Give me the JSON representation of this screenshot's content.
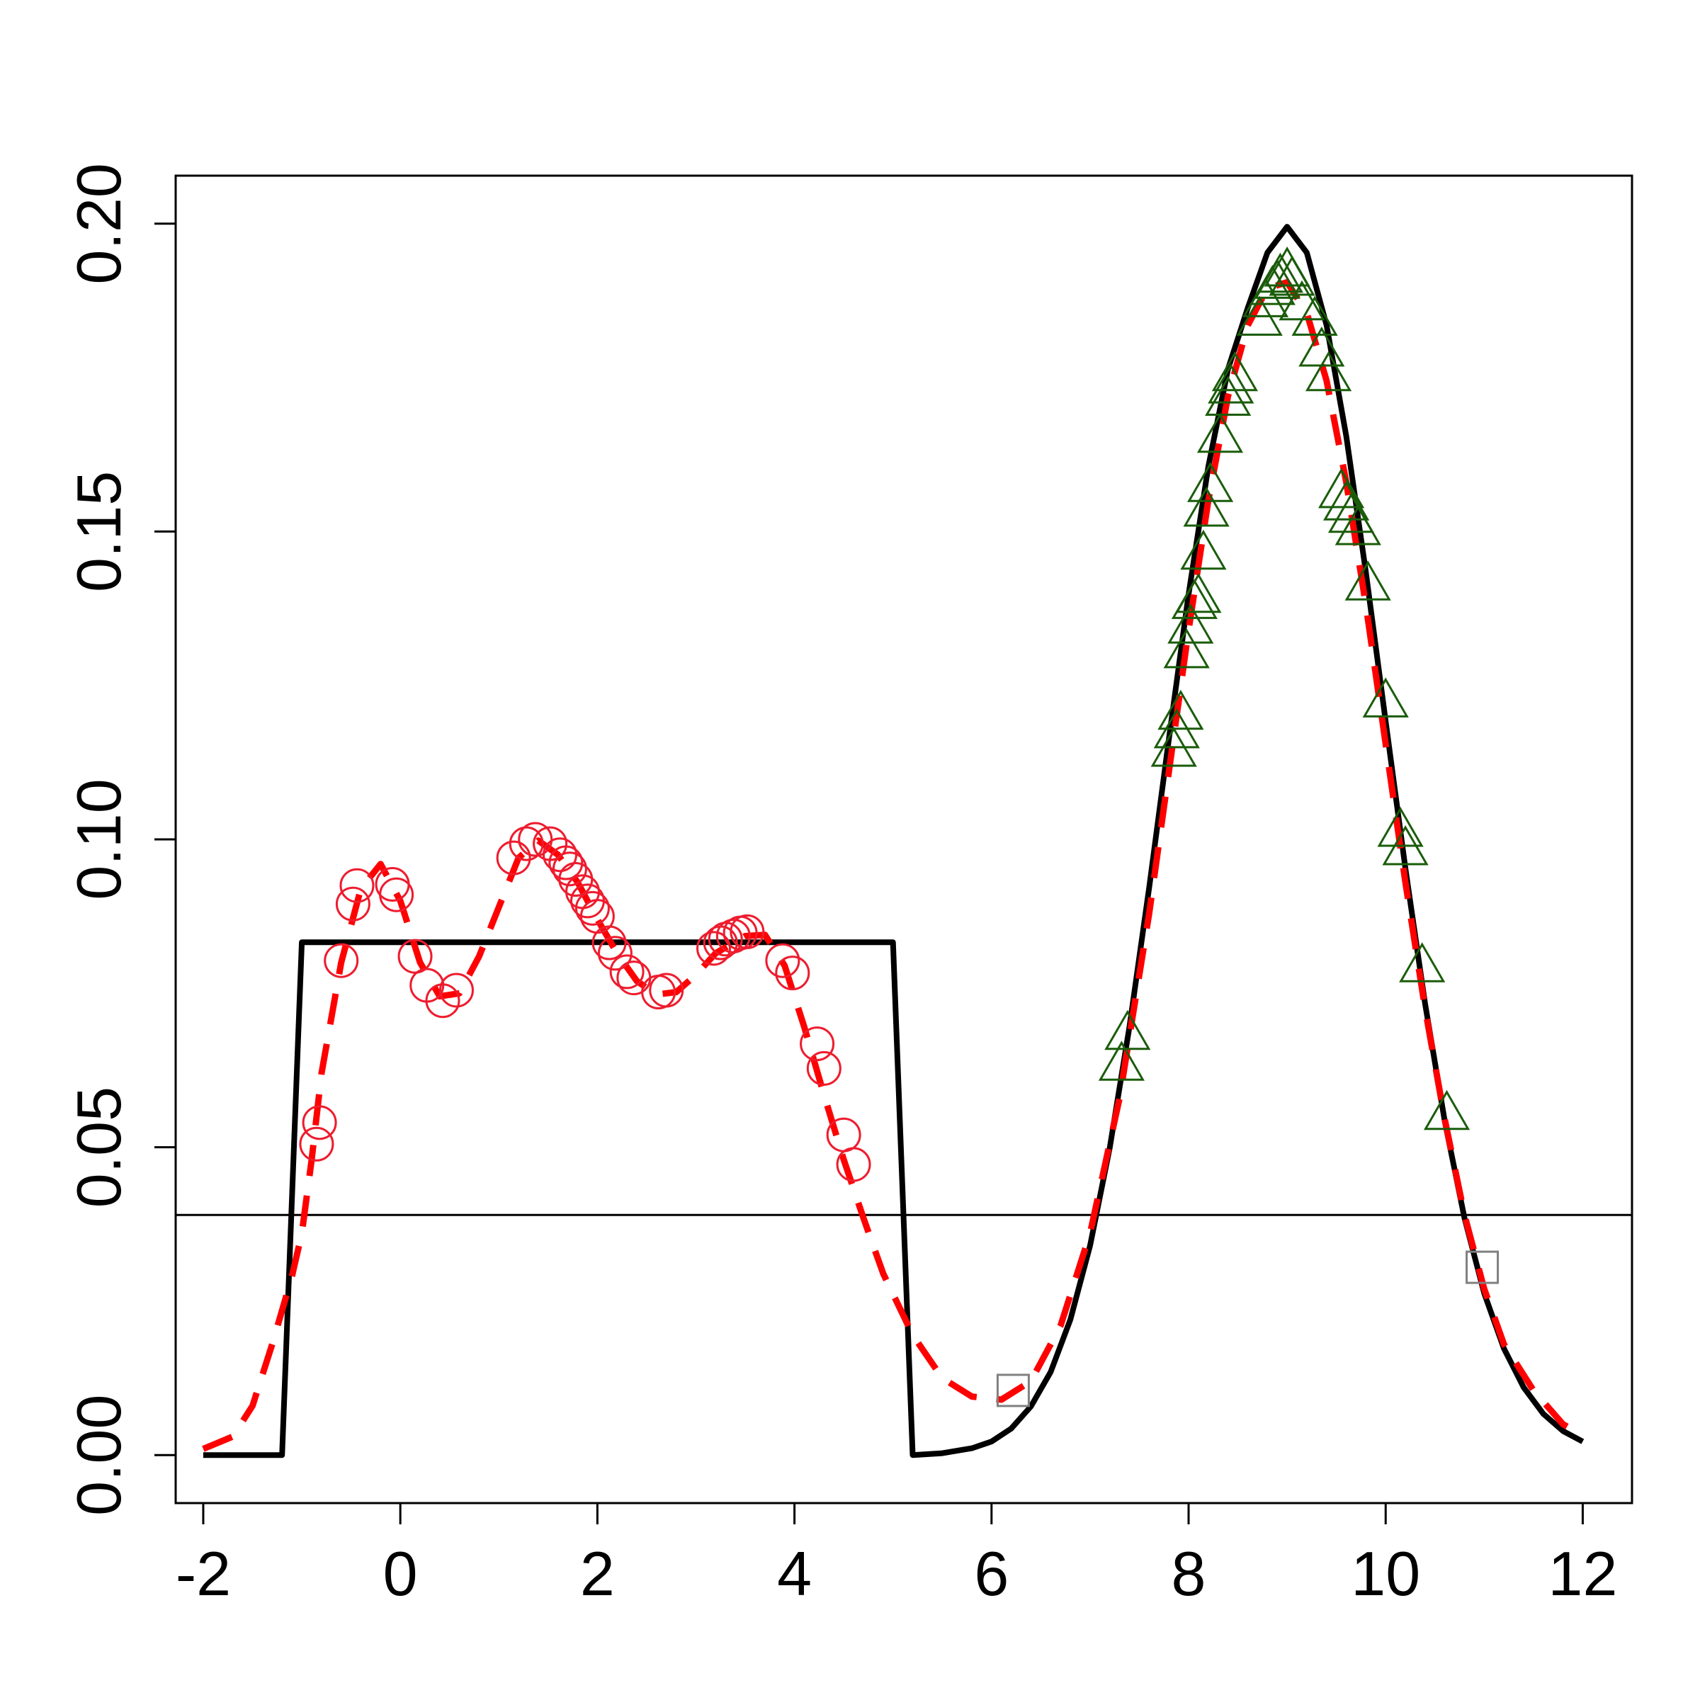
{
  "chart_data": {
    "type": "line",
    "title": "",
    "xlabel": "",
    "ylabel": "",
    "xlim": [
      -2.28,
      12.5
    ],
    "ylim": [
      -0.0078,
      0.2078
    ],
    "x_ticks": [
      -2,
      0,
      2,
      4,
      6,
      8,
      10,
      12
    ],
    "x_tick_labels": [
      "-2",
      "0",
      "2",
      "4",
      "6",
      "8",
      "10",
      "12"
    ],
    "y_ticks": [
      0.0,
      0.05,
      0.1,
      0.15,
      0.2
    ],
    "y_tick_labels": [
      "0.00",
      "0.05",
      "0.10",
      "0.15",
      "0.20"
    ],
    "grid": false,
    "legend": "none",
    "reference_line": {
      "y": 0.039,
      "color": "#000000"
    },
    "series": [
      {
        "style": "solid",
        "color": "#000000",
        "points": [
          [
            -2.0,
            0.0
          ],
          [
            -1.2,
            0.0
          ],
          [
            -1.0,
            0.0833
          ],
          [
            5.0,
            0.0833
          ],
          [
            5.2,
            0.0
          ],
          [
            5.5,
            0.0003
          ],
          [
            5.8,
            0.0011
          ],
          [
            6.0,
            0.0022
          ],
          [
            6.2,
            0.0043
          ],
          [
            6.4,
            0.0079
          ],
          [
            6.6,
            0.0135
          ],
          [
            6.8,
            0.022
          ],
          [
            7.0,
            0.034
          ],
          [
            7.2,
            0.0499
          ],
          [
            7.4,
            0.0696
          ],
          [
            7.6,
            0.0922
          ],
          [
            7.8,
            0.1163
          ],
          [
            8.0,
            0.1398
          ],
          [
            8.2,
            0.1605
          ],
          [
            8.4,
            0.1764
          ],
          [
            8.6,
            0.1863
          ],
          [
            8.8,
            0.1953
          ],
          [
            9.0,
            0.1995
          ],
          [
            9.2,
            0.1953
          ],
          [
            9.4,
            0.1835
          ],
          [
            9.6,
            0.1655
          ],
          [
            9.8,
            0.1433
          ],
          [
            10.0,
            0.1192
          ],
          [
            10.2,
            0.0953
          ],
          [
            10.4,
            0.0733
          ],
          [
            10.6,
            0.0542
          ],
          [
            10.8,
            0.0385
          ],
          [
            11.0,
            0.0263
          ],
          [
            11.2,
            0.0173
          ],
          [
            11.4,
            0.011
          ],
          [
            11.6,
            0.0067
          ],
          [
            11.8,
            0.0039
          ],
          [
            12.0,
            0.0022
          ]
        ]
      },
      {
        "style": "dashed",
        "color": "#ff0000",
        "points": [
          [
            -2.0,
            0.001
          ],
          [
            -1.7,
            0.003
          ],
          [
            -1.5,
            0.008
          ],
          [
            -1.3,
            0.018
          ],
          [
            -1.1,
            0.029
          ],
          [
            -1.0,
            0.036
          ],
          [
            -0.9,
            0.048
          ],
          [
            -0.8,
            0.062
          ],
          [
            -0.6,
            0.08
          ],
          [
            -0.4,
            0.092
          ],
          [
            -0.2,
            0.096
          ],
          [
            0.0,
            0.09
          ],
          [
            0.2,
            0.08
          ],
          [
            0.4,
            0.0745
          ],
          [
            0.6,
            0.075
          ],
          [
            0.8,
            0.081
          ],
          [
            1.0,
            0.089
          ],
          [
            1.2,
            0.097
          ],
          [
            1.4,
            0.0998
          ],
          [
            1.6,
            0.0975
          ],
          [
            1.8,
            0.093
          ],
          [
            2.0,
            0.087
          ],
          [
            2.2,
            0.0815
          ],
          [
            2.4,
            0.077
          ],
          [
            2.6,
            0.0748
          ],
          [
            2.8,
            0.0752
          ],
          [
            3.0,
            0.078
          ],
          [
            3.2,
            0.0815
          ],
          [
            3.5,
            0.0843
          ],
          [
            3.7,
            0.0845
          ],
          [
            3.9,
            0.0795
          ],
          [
            4.1,
            0.0695
          ],
          [
            4.3,
            0.0585
          ],
          [
            4.5,
            0.048
          ],
          [
            4.7,
            0.0385
          ],
          [
            4.9,
            0.0295
          ],
          [
            5.2,
            0.0195
          ],
          [
            5.5,
            0.0125
          ],
          [
            5.8,
            0.0095
          ],
          [
            6.1,
            0.009
          ],
          [
            6.4,
            0.012
          ],
          [
            6.7,
            0.021
          ],
          [
            7.0,
            0.036
          ],
          [
            7.3,
            0.058
          ],
          [
            7.6,
            0.088
          ],
          [
            7.8,
            0.111
          ],
          [
            8.0,
            0.134
          ],
          [
            8.2,
            0.155
          ],
          [
            8.4,
            0.172
          ],
          [
            8.6,
            0.1835
          ],
          [
            8.8,
            0.1895
          ],
          [
            9.0,
            0.1905
          ],
          [
            9.2,
            0.1855
          ],
          [
            9.4,
            0.1745
          ],
          [
            9.6,
            0.158
          ],
          [
            9.8,
            0.138
          ],
          [
            10.0,
            0.1155
          ],
          [
            10.2,
            0.093
          ],
          [
            10.4,
            0.0725
          ],
          [
            10.6,
            0.0545
          ],
          [
            10.8,
            0.039
          ],
          [
            11.0,
            0.027
          ],
          [
            11.2,
            0.018
          ],
          [
            11.5,
            0.0105
          ],
          [
            11.8,
            0.005
          ],
          [
            12.0,
            0.0032
          ]
        ]
      }
    ],
    "markers": {
      "circles": {
        "color": "#ee1c2e",
        "points": [
          [
            -0.85,
            0.0505
          ],
          [
            -0.82,
            0.054
          ],
          [
            -0.6,
            0.0803
          ],
          [
            -0.48,
            0.0895
          ],
          [
            -0.44,
            0.0925
          ],
          [
            -0.08,
            0.0927
          ],
          [
            -0.04,
            0.091
          ],
          [
            0.15,
            0.081
          ],
          [
            0.27,
            0.0763
          ],
          [
            0.43,
            0.0738
          ],
          [
            0.57,
            0.0755
          ],
          [
            1.15,
            0.097
          ],
          [
            1.28,
            0.0993
          ],
          [
            1.37,
            0.1
          ],
          [
            1.52,
            0.0993
          ],
          [
            1.62,
            0.0975
          ],
          [
            1.68,
            0.0962
          ],
          [
            1.72,
            0.0952
          ],
          [
            1.78,
            0.0935
          ],
          [
            1.85,
            0.0915
          ],
          [
            1.9,
            0.09
          ],
          [
            1.95,
            0.0888
          ],
          [
            2.0,
            0.0875
          ],
          [
            2.12,
            0.0832
          ],
          [
            2.18,
            0.0815
          ],
          [
            2.3,
            0.0785
          ],
          [
            2.37,
            0.0775
          ],
          [
            2.62,
            0.0752
          ],
          [
            2.7,
            0.0755
          ],
          [
            3.18,
            0.0823
          ],
          [
            3.25,
            0.0832
          ],
          [
            3.3,
            0.0838
          ],
          [
            3.38,
            0.0843
          ],
          [
            3.45,
            0.0848
          ],
          [
            3.52,
            0.085
          ],
          [
            3.88,
            0.0803
          ],
          [
            3.98,
            0.0783
          ],
          [
            4.23,
            0.0668
          ],
          [
            4.3,
            0.0628
          ],
          [
            4.5,
            0.052
          ],
          [
            4.6,
            0.0472
          ]
        ]
      },
      "triangles": {
        "color": "#1a5c0a",
        "points": [
          [
            7.32,
            0.0635
          ],
          [
            7.38,
            0.0685
          ],
          [
            7.85,
            0.1145
          ],
          [
            7.88,
            0.1175
          ],
          [
            7.92,
            0.1205
          ],
          [
            7.98,
            0.1305
          ],
          [
            8.02,
            0.1345
          ],
          [
            8.06,
            0.1385
          ],
          [
            8.1,
            0.1395
          ],
          [
            8.15,
            0.1465
          ],
          [
            8.18,
            0.1535
          ],
          [
            8.22,
            0.1575
          ],
          [
            8.32,
            0.1655
          ],
          [
            8.4,
            0.1715
          ],
          [
            8.43,
            0.1735
          ],
          [
            8.47,
            0.1755
          ],
          [
            8.72,
            0.1845
          ],
          [
            8.78,
            0.1875
          ],
          [
            8.85,
            0.1895
          ],
          [
            8.9,
            0.1905
          ],
          [
            8.93,
            0.1915
          ],
          [
            9.0,
            0.1925
          ],
          [
            9.05,
            0.191
          ],
          [
            9.15,
            0.187
          ],
          [
            9.28,
            0.1845
          ],
          [
            9.35,
            0.1795
          ],
          [
            9.42,
            0.1755
          ],
          [
            9.55,
            0.1565
          ],
          [
            9.6,
            0.1545
          ],
          [
            9.65,
            0.1525
          ],
          [
            9.72,
            0.1505
          ],
          [
            9.82,
            0.1415
          ],
          [
            10.0,
            0.1225
          ],
          [
            10.15,
            0.1015
          ],
          [
            10.2,
            0.0985
          ],
          [
            10.37,
            0.0795
          ],
          [
            10.62,
            0.0555
          ]
        ]
      },
      "squares": {
        "color": "#808080",
        "points": [
          [
            6.22,
            0.0105
          ],
          [
            10.98,
            0.0305
          ]
        ]
      }
    }
  }
}
